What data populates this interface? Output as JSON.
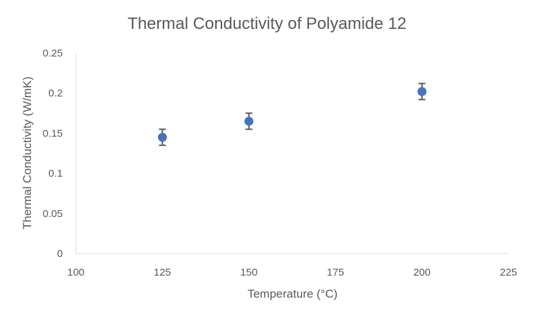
{
  "chart_data": {
    "type": "scatter",
    "title": "Thermal Conductivity of Polyamide 12",
    "xlabel": "Temperature (°C)",
    "ylabel": "Thermal Conductivity (W/mK)",
    "xlim": [
      100,
      225
    ],
    "ylim": [
      0,
      0.25
    ],
    "xticks": [
      "100",
      "125",
      "150",
      "175",
      "200",
      "225"
    ],
    "yticks": [
      "0",
      "0.05",
      "0.1",
      "0.15",
      "0.2",
      "0.25"
    ],
    "grid": false,
    "legend": "none",
    "series": [
      {
        "name": "Thermal Conductivity",
        "color": "#4472c4",
        "x": [
          125,
          150,
          200
        ],
        "y": [
          0.145,
          0.165,
          0.202
        ],
        "error": [
          0.01,
          0.01,
          0.01
        ]
      }
    ]
  }
}
